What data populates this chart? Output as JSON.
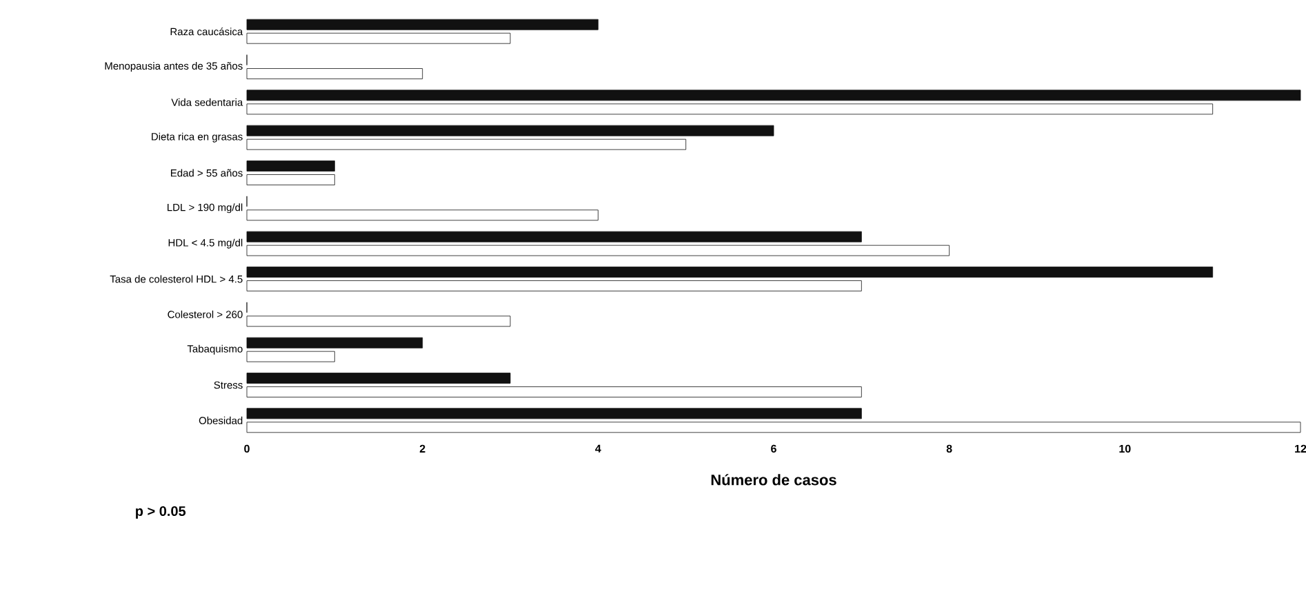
{
  "chart_data": {
    "type": "bar",
    "orientation": "horizontal",
    "xlabel": "Número de casos",
    "categories": [
      "Raza caucásica",
      "Menopausia antes de 35 años",
      "Vida sedentaria",
      "Dieta rica en grasas",
      "Edad > 55 años",
      "LDL > 190 mg/dl",
      "HDL < 4.5 mg/dl",
      "Tasa de colesterol HDL > 4.5",
      "Colesterol > 260",
      "Tabaquismo",
      "Stress",
      "Obesidad"
    ],
    "series": [
      {
        "color": "#111111",
        "values": [
          4,
          0,
          12,
          6,
          1,
          0,
          7,
          11,
          0,
          2,
          3,
          7
        ]
      },
      {
        "color": "#ffffff",
        "values": [
          3,
          2,
          11,
          5,
          1,
          4,
          8,
          7,
          3,
          1,
          7,
          12
        ]
      }
    ],
    "xlim": [
      0,
      12
    ],
    "xticks": [
      0,
      2,
      4,
      6,
      8,
      10,
      12
    ],
    "annotations": [
      "p > 0.05"
    ]
  }
}
